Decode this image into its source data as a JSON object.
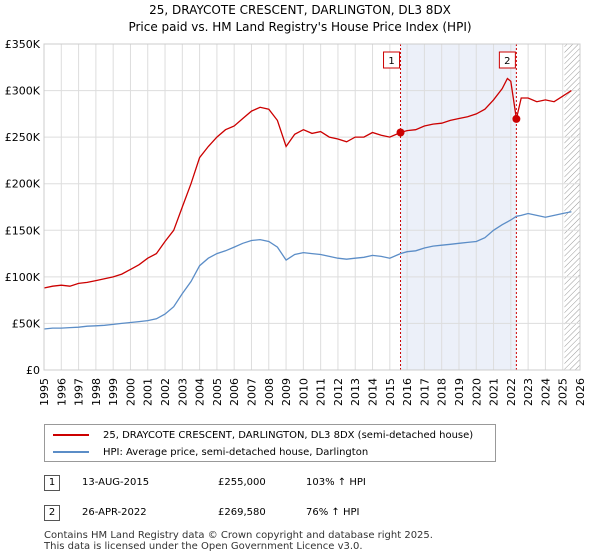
{
  "chart_data": {
    "type": "line",
    "title": "25, DRAYCOTE CRESCENT, DARLINGTON, DL3 8DX",
    "subtitle": "Price paid vs. HM Land Registry's House Price Index (HPI)",
    "xlim": [
      1995,
      2026
    ],
    "ylim": [
      0,
      350000
    ],
    "x_ticks": [
      1995,
      1996,
      1997,
      1998,
      1999,
      2000,
      2001,
      2002,
      2003,
      2004,
      2005,
      2006,
      2007,
      2008,
      2009,
      2010,
      2011,
      2012,
      2013,
      2014,
      2015,
      2016,
      2017,
      2018,
      2019,
      2020,
      2021,
      2022,
      2023,
      2024,
      2025,
      2026
    ],
    "y_ticks": [
      {
        "value": 0,
        "label": "£0"
      },
      {
        "value": 50000,
        "label": "£50K"
      },
      {
        "value": 100000,
        "label": "£100K"
      },
      {
        "value": 150000,
        "label": "£150K"
      },
      {
        "value": 200000,
        "label": "£200K"
      },
      {
        "value": 250000,
        "label": "£250K"
      },
      {
        "value": 300000,
        "label": "£300K"
      },
      {
        "value": 350000,
        "label": "£350K"
      }
    ],
    "grid": true,
    "shaded_period": [
      2015.62,
      2022.32
    ],
    "forecast_start": 2025.1,
    "series": [
      {
        "name": "25, DRAYCOTE CRESCENT, DARLINGTON, DL3 8DX (semi-detached house)",
        "color": "#cc0000",
        "x": [
          1995,
          1995.5,
          1996,
          1996.5,
          1997,
          1997.5,
          1998,
          1998.5,
          1999,
          1999.5,
          2000,
          2000.5,
          2001,
          2001.5,
          2002,
          2002.5,
          2003,
          2003.5,
          2004,
          2004.5,
          2005,
          2005.5,
          2006,
          2006.5,
          2007,
          2007.5,
          2008,
          2008.5,
          2009,
          2009.5,
          2010,
          2010.5,
          2011,
          2011.5,
          2012,
          2012.5,
          2013,
          2013.5,
          2014,
          2014.5,
          2015,
          2015.62,
          2016,
          2016.5,
          2017,
          2017.5,
          2018,
          2018.5,
          2019,
          2019.5,
          2020,
          2020.5,
          2021,
          2021.5,
          2021.8,
          2022,
          2022.32,
          2022.6,
          2023,
          2023.5,
          2024,
          2024.5,
          2025,
          2025.5
        ],
        "y": [
          88000,
          90000,
          91000,
          90000,
          93000,
          94000,
          96000,
          98000,
          100000,
          103000,
          108000,
          113000,
          120000,
          125000,
          138000,
          150000,
          175000,
          200000,
          228000,
          240000,
          250000,
          258000,
          262000,
          270000,
          278000,
          282000,
          280000,
          268000,
          240000,
          253000,
          258000,
          254000,
          256000,
          250000,
          248000,
          245000,
          250000,
          250000,
          255000,
          252000,
          250000,
          255000,
          257000,
          258000,
          262000,
          264000,
          265000,
          268000,
          270000,
          272000,
          275000,
          280000,
          290000,
          302000,
          313000,
          310000,
          269580,
          292000,
          292000,
          288000,
          290000,
          288000,
          294000,
          300000
        ]
      },
      {
        "name": "HPI: Average price, semi-detached house, Darlington",
        "color": "#5b8dc7",
        "x": [
          1995,
          1995.5,
          1996,
          1996.5,
          1997,
          1997.5,
          1998,
          1998.5,
          1999,
          1999.5,
          2000,
          2000.5,
          2001,
          2001.5,
          2002,
          2002.5,
          2003,
          2003.5,
          2004,
          2004.5,
          2005,
          2005.5,
          2006,
          2006.5,
          2007,
          2007.5,
          2008,
          2008.5,
          2009,
          2009.5,
          2010,
          2010.5,
          2011,
          2011.5,
          2012,
          2012.5,
          2013,
          2013.5,
          2014,
          2014.5,
          2015,
          2015.62,
          2016,
          2016.5,
          2017,
          2017.5,
          2018,
          2018.5,
          2019,
          2019.5,
          2020,
          2020.5,
          2021,
          2021.5,
          2022,
          2022.32,
          2022.6,
          2023,
          2023.5,
          2024,
          2024.5,
          2025,
          2025.5
        ],
        "y": [
          44000,
          45000,
          45000,
          45500,
          46000,
          47000,
          47500,
          48000,
          49000,
          50000,
          51000,
          52000,
          53000,
          55000,
          60000,
          68000,
          82000,
          95000,
          112000,
          120000,
          125000,
          128000,
          132000,
          136000,
          139000,
          140000,
          138000,
          132000,
          118000,
          124000,
          126000,
          125000,
          124000,
          122000,
          120000,
          119000,
          120000,
          121000,
          123000,
          122000,
          120000,
          125000,
          127000,
          128000,
          131000,
          133000,
          134000,
          135000,
          136000,
          137000,
          138000,
          142000,
          150000,
          156000,
          161000,
          165000,
          166000,
          168000,
          166000,
          164000,
          166000,
          168000,
          170000
        ]
      }
    ],
    "annotations": [
      {
        "id": "1",
        "x": 2015.62,
        "y": 255000
      },
      {
        "id": "2",
        "x": 2022.32,
        "y": 269580
      }
    ]
  },
  "legend": {
    "property_label": "25, DRAYCOTE CRESCENT, DARLINGTON, DL3 8DX (semi-detached house)",
    "hpi_label": "HPI: Average price, semi-detached house, Darlington"
  },
  "transactions": [
    {
      "num": "1",
      "date": "13-AUG-2015",
      "price": "£255,000",
      "hpi": "103% ↑ HPI"
    },
    {
      "num": "2",
      "date": "26-APR-2022",
      "price": "£269,580",
      "hpi": "76% ↑ HPI"
    }
  ],
  "footer": {
    "line1": "Contains HM Land Registry data © Crown copyright and database right 2025.",
    "line2": "This data is licensed under the Open Government Licence v3.0."
  }
}
